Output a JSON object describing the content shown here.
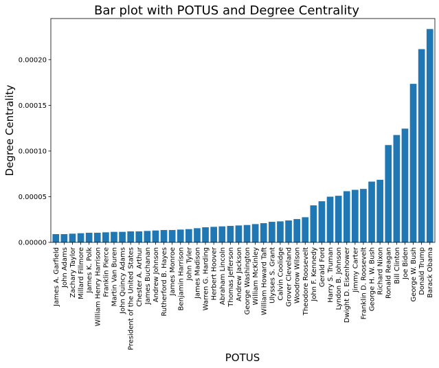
{
  "chart_data": {
    "type": "bar",
    "title": "Bar plot with POTUS and Degree Centrality",
    "xlabel": "POTUS",
    "ylabel": "Degree Centrality",
    "ylim": [
      0,
      0.000245
    ],
    "yticks": [
      0,
      5e-05,
      0.0001,
      0.00015,
      0.0002
    ],
    "ytick_labels": [
      "0.00000",
      "0.00005",
      "0.00010",
      "0.00015",
      "0.00020"
    ],
    "grid": false,
    "bar_color": "#1f77b4",
    "categories": [
      "James A. Garfield",
      "John Adams",
      "Zachary Taylor",
      "Millard Fillmore",
      "James K. Polk",
      "William Henry Harrison",
      "Franklin Pierce",
      "Martin Van Buren",
      "John Quincy Adams",
      "President of the United States",
      "Chester A. Arthur",
      "James Buchanan",
      "Andrew Johnson",
      "Rutherford B. Hayes",
      "James Monroe",
      "Benjamin Harrison",
      "John Tyler",
      "James Madison",
      "Warren G. Harding",
      "Herbert Hoover",
      "Abraham Lincoln",
      "Thomas Jefferson",
      "Andrew Jackson",
      "George Washington",
      "William McKinley",
      "William Howard Taft",
      "Ulysses S. Grant",
      "Calvin Coolidge",
      "Grover Cleveland",
      "Woodrow Wilson",
      "Theodore Roosevelt",
      "John F. Kennedy",
      "Gerald Ford",
      "Harry S. Truman",
      "Lyndon B. Johnson",
      "Dwight D. Eisenhower",
      "Jimmy Carter",
      "Franklin D. Roosevelt",
      "George H. W. Bush",
      "Richard Nixon",
      "Ronald Reagan",
      "Bill Clinton",
      "Joe Biden",
      "George W. Bush",
      "Donald Trump",
      "Barack Obama"
    ],
    "values": [
      9e-06,
      9e-06,
      9.5e-06,
      1e-05,
      1.05e-05,
      1.05e-05,
      1.1e-05,
      1.15e-05,
      1.15e-05,
      1.2e-05,
      1.2e-05,
      1.25e-05,
      1.3e-05,
      1.35e-05,
      1.35e-05,
      1.4e-05,
      1.45e-05,
      1.55e-05,
      1.65e-05,
      1.7e-05,
      1.75e-05,
      1.8e-05,
      1.85e-05,
      1.9e-05,
      2e-05,
      2.1e-05,
      2.25e-05,
      2.3e-05,
      2.4e-05,
      2.55e-05,
      2.75e-05,
      4.05e-05,
      4.5e-05,
      5e-05,
      5.1e-05,
      5.6e-05,
      5.75e-05,
      5.85e-05,
      6.65e-05,
      6.85e-05,
      0.0001065,
      0.0001175,
      0.0001245,
      0.0001735,
      0.0002115,
      0.0002335
    ]
  }
}
